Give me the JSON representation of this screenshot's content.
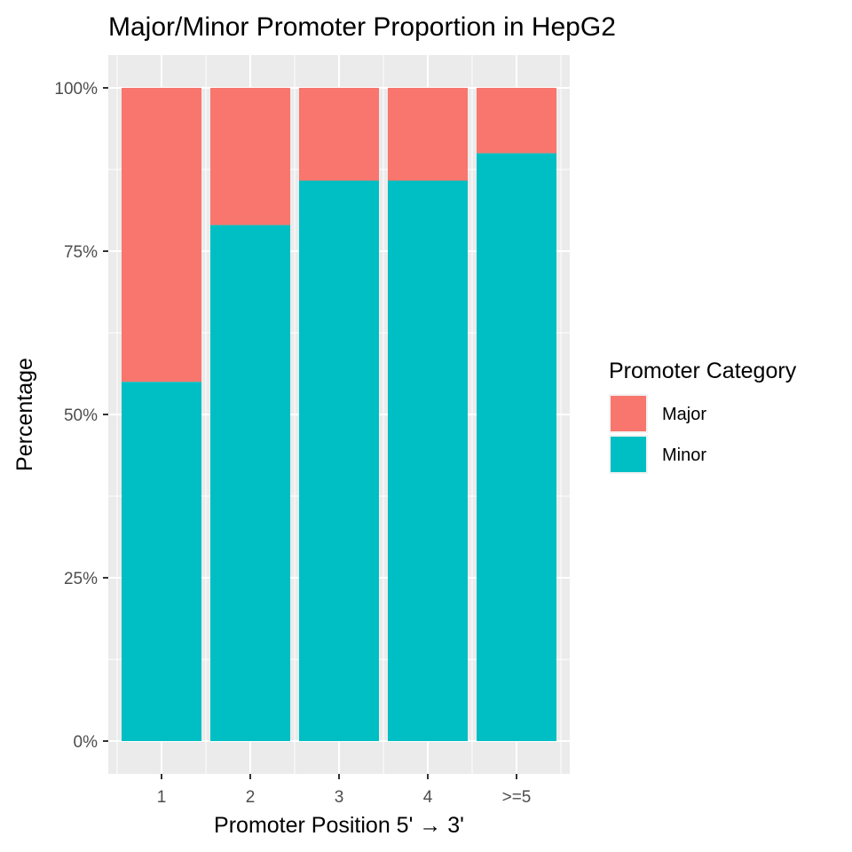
{
  "chart_data": {
    "type": "bar",
    "stacked": true,
    "title": "Major/Minor Promoter Proportion in HepG2",
    "xlabel": "Promoter Position 5' → 3'",
    "ylabel": "Percentage",
    "categories": [
      "1",
      "2",
      "3",
      "4",
      ">=5"
    ],
    "ylim": [
      0,
      1
    ],
    "y_ticks": [
      {
        "value": 0,
        "label": "0%"
      },
      {
        "value": 0.25,
        "label": "25%"
      },
      {
        "value": 0.5,
        "label": "50%"
      },
      {
        "value": 0.75,
        "label": "75%"
      },
      {
        "value": 1,
        "label": "100%"
      }
    ],
    "series": [
      {
        "name": "Minor",
        "color": "#00BFC4",
        "values": [
          0.55,
          0.79,
          0.858,
          0.858,
          0.9
        ]
      },
      {
        "name": "Major",
        "color": "#F8766D",
        "values": [
          0.45,
          0.21,
          0.142,
          0.142,
          0.1
        ]
      }
    ],
    "legend": {
      "title": "Promoter Category",
      "placement": "right",
      "entries": [
        {
          "label": "Major",
          "color": "#F8766D"
        },
        {
          "label": "Minor",
          "color": "#00BFC4"
        }
      ]
    },
    "grid": true,
    "panel_background": "#EBEBEB"
  }
}
